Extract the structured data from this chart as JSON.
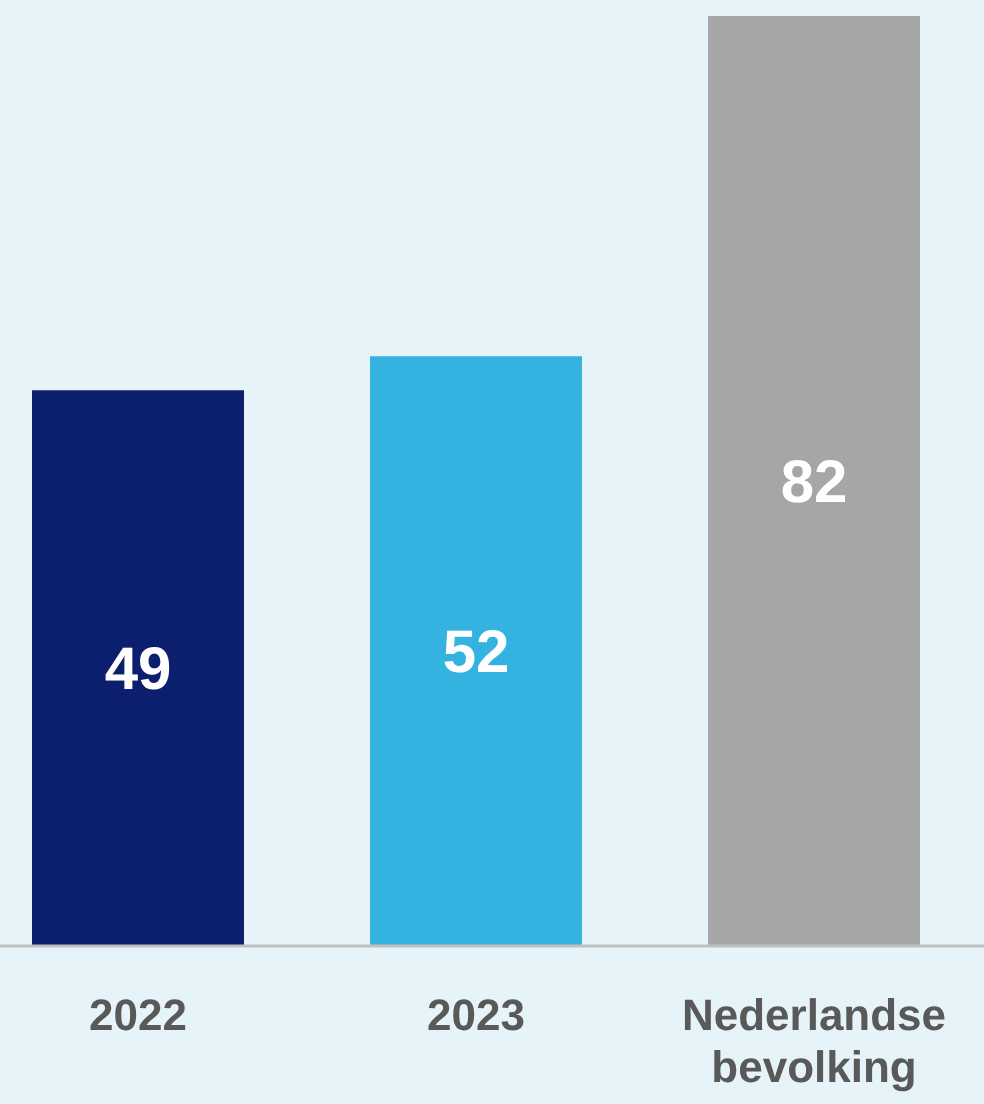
{
  "chart_data": {
    "type": "bar",
    "categories": [
      "2022",
      "2023",
      "Nederlandse bevolking"
    ],
    "values": [
      49,
      52,
      82
    ],
    "colors": [
      "#0c1f6e",
      "#35b3e0",
      "#a6a6a6"
    ],
    "data_labels": true
  }
}
